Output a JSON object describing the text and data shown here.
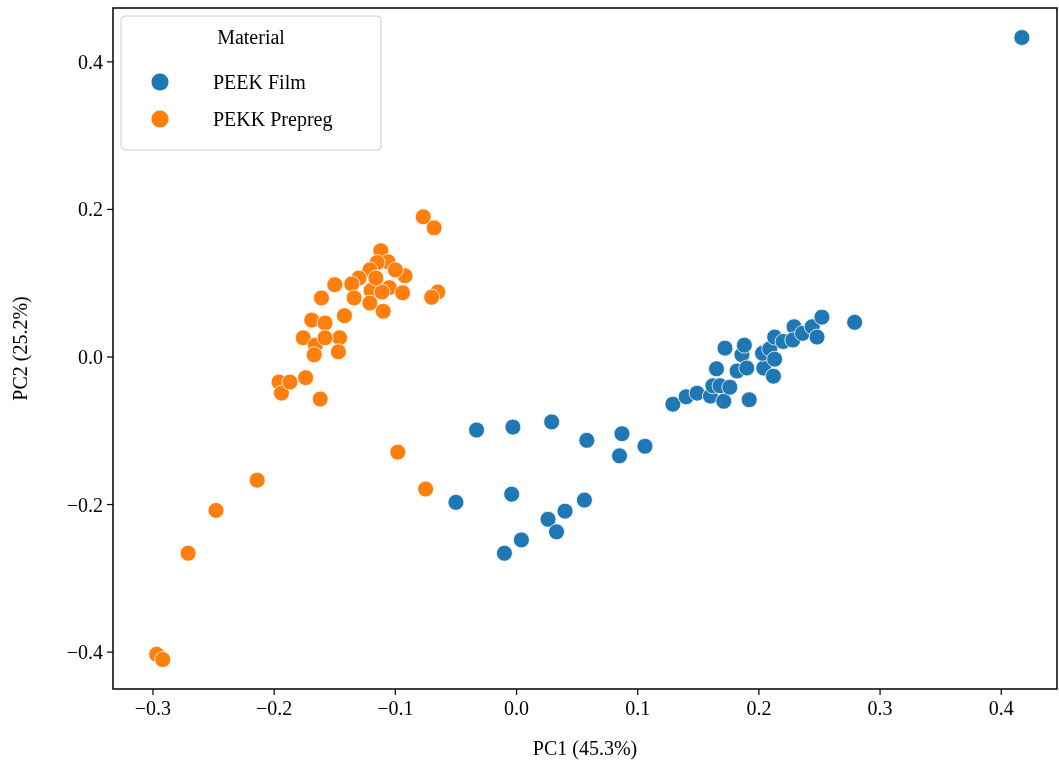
{
  "chart_data": {
    "type": "scatter",
    "xlabel": "PC1 (45.3%)",
    "ylabel": "PC2 (25.2%)",
    "legend_title": "Material",
    "legend": "top left",
    "marker": "circle",
    "grid": false,
    "xlim": [
      -0.333,
      0.446
    ],
    "ylim": [
      -0.45,
      0.473
    ],
    "xticks": [
      {
        "value": -0.3,
        "label": "−0.3"
      },
      {
        "value": -0.2,
        "label": "−0.2"
      },
      {
        "value": -0.1,
        "label": "−0.1"
      },
      {
        "value": 0,
        "label": "0.0"
      },
      {
        "value": 0.1,
        "label": "0.1"
      },
      {
        "value": 0.2,
        "label": "0.2"
      },
      {
        "value": 0.3,
        "label": "0.3"
      },
      {
        "value": 0.4,
        "label": "0.4"
      }
    ],
    "yticks": [
      {
        "value": -0.4,
        "label": "−0.4"
      },
      {
        "value": -0.2,
        "label": "−0.2"
      },
      {
        "value": 0,
        "label": "0.0"
      },
      {
        "value": 0.2,
        "label": "0.2"
      },
      {
        "value": 0.4,
        "label": "0.4"
      }
    ],
    "series": [
      {
        "name": "PEEK Film",
        "color": "#1f77b4",
        "x": [
          0.417,
          -0.05,
          -0.033,
          -0.003,
          0.029,
          0.058,
          0.087,
          0.085,
          0.106,
          -0.004,
          -0.01,
          0.004,
          0.026,
          0.033,
          0.04,
          0.056,
          0.129,
          0.14,
          0.149,
          0.16,
          0.162,
          0.168,
          0.171,
          0.165,
          0.172,
          0.182,
          0.186,
          0.188,
          0.19,
          0.192,
          0.176,
          0.204,
          0.203,
          0.209,
          0.212,
          0.213,
          0.22,
          0.229,
          0.228,
          0.236,
          0.244,
          0.248,
          0.252,
          0.279,
          0.213
        ],
        "values": [
          0.433,
          -0.197,
          -0.099,
          -0.095,
          -0.088,
          -0.113,
          -0.104,
          -0.134,
          -0.121,
          -0.186,
          -0.266,
          -0.248,
          -0.22,
          -0.237,
          -0.209,
          -0.194,
          -0.064,
          -0.054,
          -0.049,
          -0.053,
          -0.039,
          -0.039,
          -0.06,
          -0.016,
          0.012,
          -0.019,
          0.003,
          0.016,
          -0.015,
          -0.058,
          -0.041,
          -0.015,
          0.005,
          0.011,
          -0.026,
          0.027,
          0.021,
          0.041,
          0.023,
          0.032,
          0.041,
          0.027,
          0.054,
          0.047,
          -0.003
        ]
      },
      {
        "name": "PEKK Prepreg",
        "color": "#ff7f0e",
        "x": [
          -0.077,
          -0.068,
          -0.112,
          -0.106,
          -0.115,
          -0.121,
          -0.13,
          -0.136,
          -0.12,
          -0.105,
          -0.092,
          -0.094,
          -0.111,
          -0.121,
          -0.11,
          -0.134,
          -0.116,
          -0.1,
          -0.15,
          -0.065,
          -0.07,
          -0.161,
          -0.142,
          -0.169,
          -0.158,
          -0.176,
          -0.166,
          -0.146,
          -0.167,
          -0.147,
          -0.158,
          -0.196,
          -0.194,
          -0.187,
          -0.174,
          -0.162,
          -0.098,
          -0.075,
          -0.214,
          -0.248,
          -0.271,
          -0.297,
          -0.292
        ],
        "values": [
          0.19,
          0.175,
          0.144,
          0.129,
          0.128,
          0.118,
          0.107,
          0.099,
          0.09,
          0.094,
          0.11,
          0.087,
          0.088,
          0.073,
          0.062,
          0.08,
          0.107,
          0.118,
          0.098,
          0.088,
          0.081,
          0.08,
          0.056,
          0.05,
          0.046,
          0.026,
          0.016,
          0.026,
          0.003,
          0.007,
          0.026,
          -0.034,
          -0.049,
          -0.034,
          -0.028,
          -0.057,
          -0.129,
          -0.179,
          -0.167,
          -0.208,
          -0.266,
          -0.403,
          -0.41
        ]
      }
    ]
  }
}
